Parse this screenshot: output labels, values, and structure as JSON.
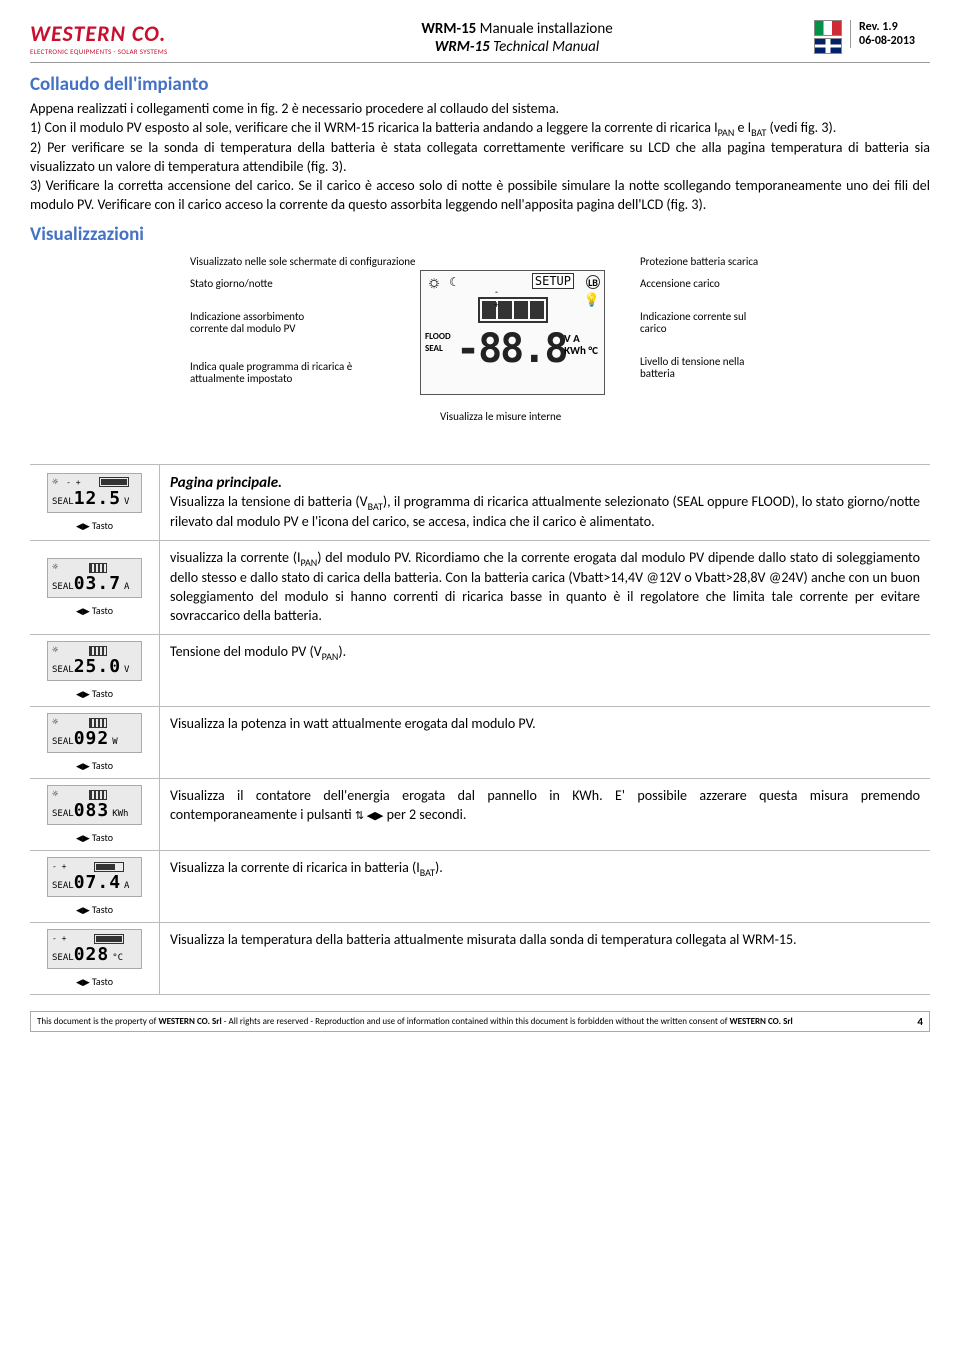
{
  "header": {
    "logo_brand": "WESTERN CO.",
    "logo_tag": "ELECTRONIC EQUIPMENTS - SOLAR SYSTEMS",
    "title1": "WRM-15 Manuale installazione",
    "title1_bold": "WRM-15",
    "title2": "WRM-15 Technical Manual",
    "rev": "Rev. 1.9",
    "date": "06-08-2013"
  },
  "section1_title": "Collaudo dell'impianto",
  "section1_body": "Appena realizzati i collegamenti come in fig. 2 è necessario procedere al collaudo del sistema.\n1) Con il modulo PV esposto al sole, verificare che il WRM-15 ricarica la batteria andando a leggere la corrente di ricarica IPAN e IBAT (vedi fig. 3).\n2) Per verificare se la sonda di temperatura della batteria è stata collegata correttamente verificare su LCD che alla pagina temperatura di batteria sia visualizzato un valore di temperatura attendibile (fig. 3).\n3) Verificare la corretta accensione del carico. Se il carico è acceso solo di notte è possibile simulare la notte scollegando temporaneamente uno dei fili del modulo PV. Verificare con il carico acceso la corrente da questo assorbita leggendo nell'apposita pagina dell'LCD (fig. 3).",
  "section2_title": "Visualizzazioni",
  "diagram": {
    "lbl_top": "Visualizzato nelle sole schermate di configurazione",
    "lbl_proto": "Protezione batteria scarica",
    "lbl_stato": "Stato giorno/notte",
    "lbl_acc": "Accensione carico",
    "lbl_assorb": "Indicazione assorbimento corrente dal modulo PV",
    "lbl_corrente": "Indicazione corrente sul carico",
    "lbl_prog": "Indica quale programma di ricarica è attualmente impostato",
    "lbl_livello": "Livello di tensione nella batteria",
    "lbl_bottom": "Visualizza le misure interne",
    "setup": "SETUP",
    "flood": "FLOOD",
    "seal": "SEAL",
    "digits": "-88.8",
    "units1": "V A",
    "units2": "KWh °C"
  },
  "rows": [
    {
      "lcd": {
        "sun": "☼",
        "seal": "SEAL",
        "bars": "f4",
        "val": "12.5",
        "unit": "V",
        "topbat": true
      },
      "tasto": "Tasto",
      "title": "Pagina principale.",
      "text": "Visualizza la tensione di batteria (VBAT), il programma di ricarica attualmente selezionato (SEAL oppure FLOOD), lo stato giorno/notte rilevato dal modulo PV e l'icona del carico, se accesa, indica che il carico è alimentato."
    },
    {
      "lcd": {
        "sun": "☼",
        "seal": "SEAL",
        "bars": "f3",
        "val": "03.7",
        "unit": "A",
        "panel": true
      },
      "tasto": "Tasto",
      "text": "visualizza la corrente (IPAN) del modulo PV. Ricordiamo che la corrente erogata dal modulo PV dipende dallo stato di soleggiamento dello stesso e dallo stato di carica della batteria. Con la batteria carica (Vbatt>14,4V @12V o Vbatt>28,8V @24V) anche con un buon soleggiamento del modulo si hanno correnti di ricarica basse in quanto è il regolatore che limita tale corrente per evitare sovraccarico della batteria."
    },
    {
      "lcd": {
        "sun": "☼",
        "seal": "SEAL",
        "val": "25.0",
        "unit": "V",
        "panel": true
      },
      "tasto": "Tasto",
      "text": "Tensione del modulo PV (VPAN)."
    },
    {
      "lcd": {
        "sun": "☼",
        "seal": "SEAL",
        "val": "092",
        "unit": "W",
        "panel": true
      },
      "tasto": "Tasto",
      "text": "Visualizza la potenza in watt attualmente erogata dal modulo PV."
    },
    {
      "lcd": {
        "sun": "☼",
        "seal": "SEAL",
        "bars": "f3",
        "val": "083",
        "unit": "KWh",
        "panel": true
      },
      "tasto": "Tasto",
      "text": "Visualizza il contatore dell'energia erogata dal pannello in KWh. E' possibile azzerare questa misura premendo contemporaneamente i pulsanti ",
      "text2": " per 2 secondi.",
      "buttons": "⇅ ◀▶"
    },
    {
      "lcd": {
        "seal": "SEAL",
        "bars": "f3",
        "val": "07.4",
        "unit": "A",
        "topbat": true
      },
      "tasto": "Tasto",
      "text": "Visualizza la corrente di ricarica in batteria (IBAT)."
    },
    {
      "lcd": {
        "seal": "SEAL",
        "bars": "f4",
        "val": "028",
        "unit": "°C",
        "topbat": true
      },
      "tasto": "Tasto",
      "text": "Visualizza la temperatura della batteria attualmente misurata dalla sonda di temperatura collegata al WRM-15."
    }
  ],
  "footer": {
    "text": "This document is the property of WESTERN CO. Srl - All rights are reserved - Reproduction and use of information contained within this document is forbidden without the written consent of WESTERN CO. Srl",
    "page": "4"
  }
}
